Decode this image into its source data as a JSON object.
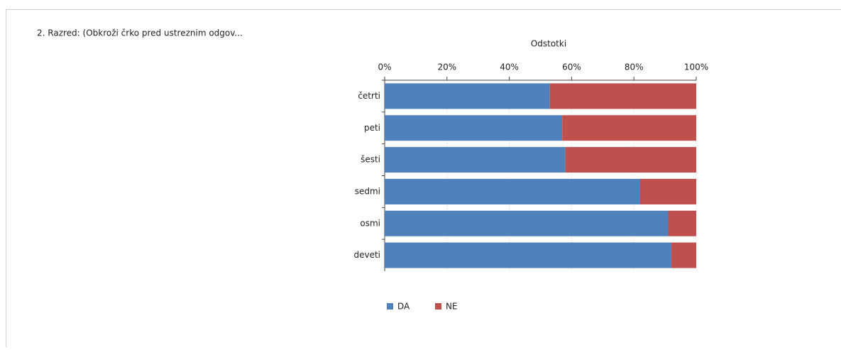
{
  "question": "2. Razred: (Obkroži črko pred ustreznim odgov...",
  "chart_data": {
    "type": "bar",
    "orientation": "horizontal",
    "stacked": true,
    "xlabel": "Odstotki",
    "categories": [
      "četrti",
      "peti",
      "šesti",
      "sedmi",
      "osmi",
      "deveti"
    ],
    "series": [
      {
        "name": "DA",
        "color": "#4f81bd",
        "values": [
          53,
          57,
          58,
          82,
          91,
          92
        ]
      },
      {
        "name": "NE",
        "color": "#c0504d",
        "values": [
          47,
          43,
          42,
          18,
          9,
          8
        ]
      }
    ],
    "xlim": [
      0,
      100
    ],
    "xticks": [
      {
        "value": 0,
        "label": "0%"
      },
      {
        "value": 20,
        "label": "20%"
      },
      {
        "value": 40,
        "label": "40%"
      },
      {
        "value": 60,
        "label": "60%"
      },
      {
        "value": 80,
        "label": "80%"
      },
      {
        "value": 100,
        "label": "100%"
      }
    ],
    "grid": true,
    "legend": "bottom"
  }
}
